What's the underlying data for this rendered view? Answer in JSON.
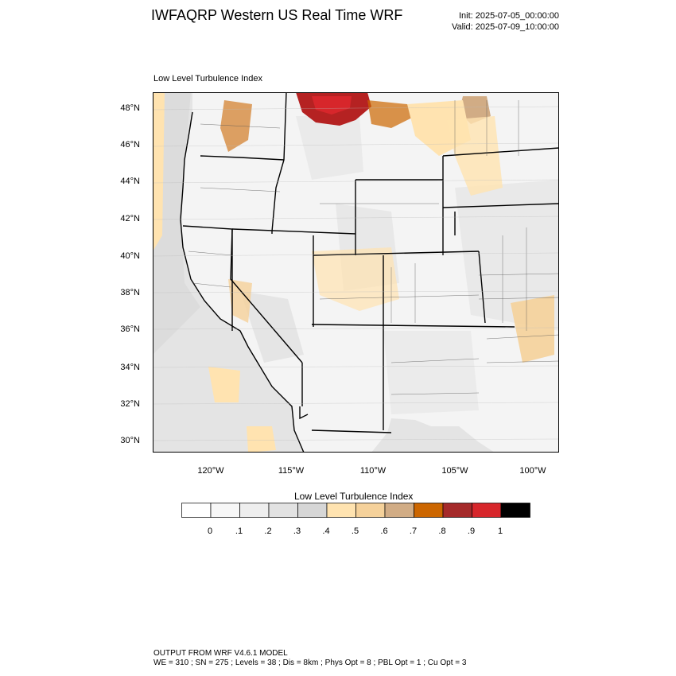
{
  "header": {
    "title": "IWFAQRP Western US Real Time WRF",
    "init": "Init: 2025-07-05_00:00:00",
    "valid": "Valid: 2025-07-09_10:00:00"
  },
  "map": {
    "field_label": "Low Level Turbulence Index",
    "lat_labels": [
      "48°N",
      "46°N",
      "44°N",
      "42°N",
      "40°N",
      "38°N",
      "36°N",
      "34°N",
      "32°N",
      "30°N"
    ],
    "lon_labels": [
      "120°W",
      "115°W",
      "110°W",
      "105°W",
      "100°W"
    ],
    "bg_color": "#f0f0f0"
  },
  "colorbar": {
    "title": "Low Level Turbulence Index",
    "tick_labels": [
      "0",
      ".1",
      ".2",
      ".3",
      ".4",
      ".5",
      ".6",
      ".7",
      ".8",
      ".9",
      "1"
    ],
    "colors": [
      "#ffffff",
      "#f7f7f7",
      "#eeeeee",
      "#e2e2e2",
      "#d6d6d6",
      "#ffe3b0",
      "#f5d19a",
      "#d1ac85",
      "#cc6600",
      "#a52a2a",
      "#d7262b",
      "#000000"
    ]
  },
  "footer": {
    "line1": "OUTPUT FROM WRF V4.6.1 MODEL",
    "line2": "WE = 310 ; SN = 275 ; Levels = 38 ; Dis = 8km ; Phys Opt = 8 ; PBL Opt = 1 ; Cu Opt = 3"
  }
}
